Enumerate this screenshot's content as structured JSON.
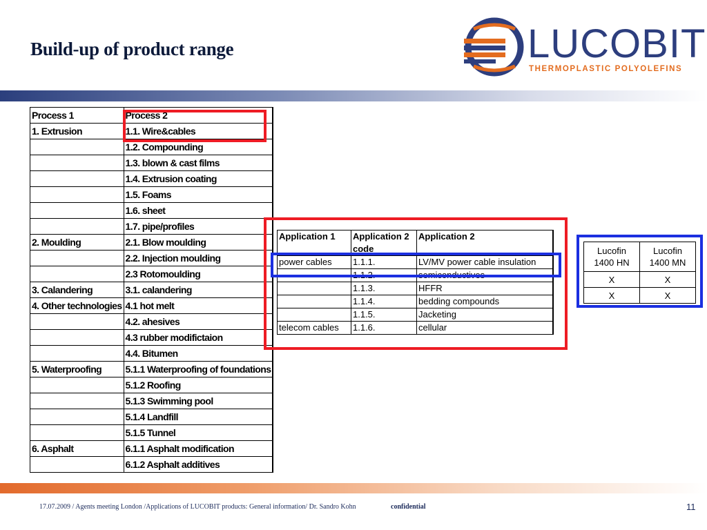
{
  "title": "Build-up of product range",
  "logo": {
    "word": "LUCOBIT",
    "tagline": "THERMOPLASTIC POLYOLEFINS",
    "colors": {
      "blue": "#2d3e7e",
      "orange": "#e36c1f"
    }
  },
  "process_table": {
    "headers": [
      "Process 1",
      "Process 2"
    ],
    "rows": [
      [
        "1.  Extrusion",
        "1.1.  Wire&cables"
      ],
      [
        "",
        "1.2.  Compounding"
      ],
      [
        "",
        "1.3.   blown & cast films"
      ],
      [
        "",
        "1.4.  Extrusion coating"
      ],
      [
        "",
        "1.5.  Foams"
      ],
      [
        "",
        "1.6.  sheet"
      ],
      [
        "",
        "1.7.  pipe/profiles"
      ],
      [
        "2.  Moulding",
        "2.1.  Blow moulding"
      ],
      [
        "",
        "2.2.  Injection moulding"
      ],
      [
        "",
        "2.3  Rotomoulding"
      ],
      [
        "3.  Calandering",
        "3.1. calandering"
      ],
      [
        "4.  Other technologies",
        "4.1  hot melt"
      ],
      [
        "",
        "4.2. ahesives"
      ],
      [
        "",
        "4.3  rubber modifictaion"
      ],
      [
        "",
        "4.4. Bitumen"
      ],
      [
        "5. Waterproofing",
        "5.1.1 Waterproofing of foundations"
      ],
      [
        "",
        "5.1.2 Roofing"
      ],
      [
        "",
        "5.1.3 Swimming pool"
      ],
      [
        "",
        "5.1.4 Landfill"
      ],
      [
        "",
        "5.1.5 Tunnel"
      ],
      [
        "6. Asphalt",
        "6.1.1 Asphalt modification"
      ],
      [
        "",
        "6.1.2 Asphalt additives"
      ]
    ]
  },
  "application_table": {
    "headers": [
      "Application 1",
      "Application 2 code",
      "Application  2"
    ],
    "rows": [
      [
        "power cables",
        "1.1.1.",
        "LV/MV power cable insulation"
      ],
      [
        "",
        "1.1.2.",
        "semiconductives"
      ],
      [
        "",
        "1.1.3.",
        "HFFR"
      ],
      [
        "",
        "1.1.4.",
        "bedding compounds"
      ],
      [
        "",
        "1.1.5.",
        "Jacketing"
      ],
      [
        "telecom cables",
        "1.1.6.",
        "cellular"
      ]
    ]
  },
  "lucofin_table": {
    "headers": [
      [
        "Lucofin",
        "1400 HN"
      ],
      [
        "Lucofin",
        "1400 MN"
      ]
    ],
    "rows": [
      [
        "X",
        "X"
      ],
      [
        "X",
        "X"
      ]
    ]
  },
  "footer": {
    "text": "17.07.2009 / Agents meeting London /Applications of LUCOBIT products: General information/ Dr. Sandro Kohn",
    "confidential": "confidential",
    "page": "11"
  },
  "highlight_colors": {
    "red": "#ee1c24",
    "blue": "#1b2fe0"
  }
}
